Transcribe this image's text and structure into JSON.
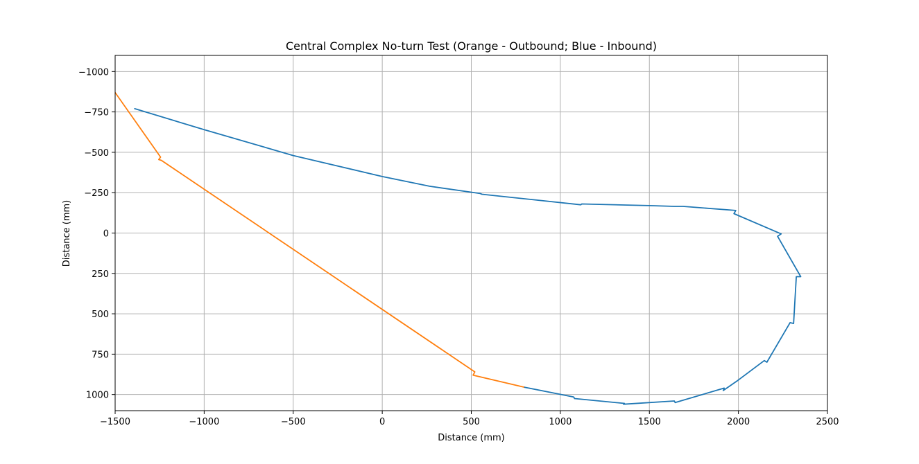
{
  "chart_data": {
    "type": "line",
    "title": "Central Complex No-turn Test (Orange - Outbound; Blue - Inbound)",
    "xlabel": "Distance (mm)",
    "ylabel": "Distance (mm)",
    "xlim": [
      -1500,
      2500
    ],
    "ylim": [
      1100,
      -1100
    ],
    "y_inverted": true,
    "grid": true,
    "x_ticks": [
      -1500,
      -1000,
      -500,
      0,
      500,
      1000,
      1500,
      2000,
      2500
    ],
    "y_ticks": [
      -1000,
      -750,
      -500,
      -250,
      0,
      250,
      500,
      750,
      1000
    ],
    "x_tick_labels": [
      "−1500",
      "−1000",
      "−500",
      "0",
      "500",
      "1000",
      "1500",
      "2000",
      "2500"
    ],
    "y_tick_labels": [
      "−1000",
      "−750",
      "−500",
      "−250",
      "0",
      "250",
      "500",
      "750",
      "1000"
    ],
    "series": [
      {
        "color": "#ff7f0e",
        "points": [
          [
            -1500,
            -870
          ],
          [
            -1245,
            -470
          ],
          [
            -1255,
            -455
          ],
          [
            -1240,
            -450
          ],
          [
            520,
            860
          ],
          [
            510,
            880
          ],
          [
            800,
            955
          ]
        ]
      },
      {
        "color": "#1f77b4",
        "points": [
          [
            800,
            955
          ],
          [
            1075,
            1015
          ],
          [
            1080,
            1025
          ],
          [
            1360,
            1055
          ],
          [
            1355,
            1060
          ],
          [
            1640,
            1040
          ],
          [
            1645,
            1050
          ],
          [
            1920,
            960
          ],
          [
            1915,
            975
          ],
          [
            2000,
            910
          ],
          [
            2145,
            790
          ],
          [
            2160,
            800
          ],
          [
            2290,
            555
          ],
          [
            2310,
            560
          ],
          [
            2325,
            270
          ],
          [
            2350,
            270
          ],
          [
            2220,
            20
          ],
          [
            2240,
            5
          ],
          [
            1975,
            -120
          ],
          [
            1985,
            -140
          ],
          [
            1690,
            -165
          ],
          [
            1640,
            -165
          ],
          [
            1500,
            -170
          ],
          [
            1120,
            -180
          ],
          [
            1115,
            -175
          ],
          [
            560,
            -240
          ],
          [
            550,
            -245
          ],
          [
            265,
            -290
          ],
          [
            0,
            -350
          ],
          [
            -500,
            -480
          ],
          [
            -1000,
            -640
          ],
          [
            -1390,
            -770
          ]
        ]
      }
    ]
  }
}
